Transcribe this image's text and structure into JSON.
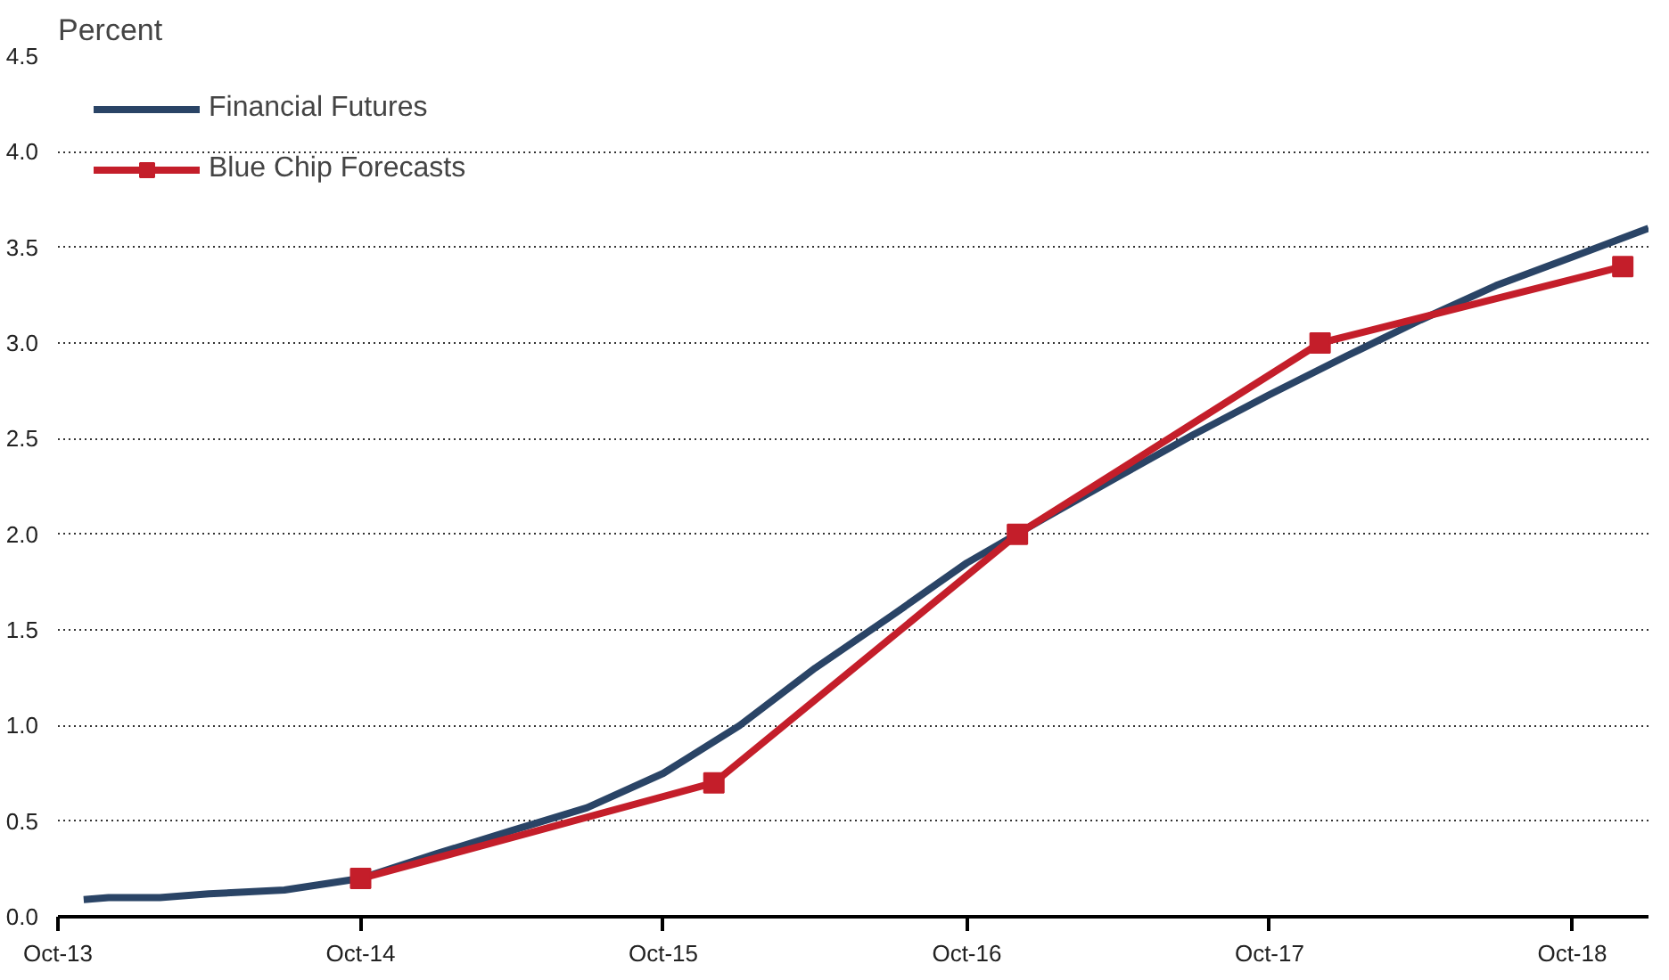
{
  "chart_data": {
    "type": "line",
    "ylabel": "Percent",
    "x": [
      "2013-11",
      "2013-12",
      "2014-02",
      "2014-04",
      "2014-07",
      "2014-10",
      "2015-01",
      "2015-04",
      "2015-07",
      "2015-10",
      "2016-01",
      "2016-04",
      "2016-07",
      "2016-10",
      "2017-01",
      "2017-04",
      "2017-07",
      "2017-10",
      "2018-01",
      "2018-04",
      "2018-07",
      "2018-10",
      "2019-01"
    ],
    "series": [
      {
        "name": "Financial Futures",
        "color": "#2a4466",
        "marker": "none",
        "values": [
          0.09,
          0.1,
          0.1,
          0.12,
          0.14,
          0.2,
          0.33,
          0.45,
          0.57,
          0.75,
          1.0,
          1.3,
          1.57,
          1.85,
          2.08,
          2.3,
          2.52,
          2.73,
          2.93,
          3.12,
          3.3,
          3.45,
          3.6
        ]
      },
      {
        "name": "Blue Chip Forecasts",
        "color": "#c41e2a",
        "marker": "square",
        "x": [
          "2014-10",
          "2015-12",
          "2016-12",
          "2017-12",
          "2018-12"
        ],
        "values": [
          0.2,
          0.7,
          2.0,
          3.0,
          3.4
        ]
      }
    ],
    "xlim": [
      "2013-10",
      "2019-01"
    ],
    "xticks": [
      {
        "value": "2013-10",
        "label": "Oct-13"
      },
      {
        "value": "2014-10",
        "label": "Oct-14"
      },
      {
        "value": "2015-10",
        "label": "Oct-15"
      },
      {
        "value": "2016-10",
        "label": "Oct-16"
      },
      {
        "value": "2017-10",
        "label": "Oct-17"
      },
      {
        "value": "2018-10",
        "label": "Oct-18"
      }
    ],
    "ylim": [
      0,
      4.5
    ],
    "yticks": [
      {
        "value": 0,
        "label": "0.0"
      },
      {
        "value": 0.5,
        "label": "0.5"
      },
      {
        "value": 1,
        "label": "1.0"
      },
      {
        "value": 1.5,
        "label": "1.5"
      },
      {
        "value": 2,
        "label": "2.0"
      },
      {
        "value": 2.5,
        "label": "2.5"
      },
      {
        "value": 3,
        "label": "3.0"
      },
      {
        "value": 3.5,
        "label": "3.5"
      },
      {
        "value": 4,
        "label": "4.0"
      },
      {
        "value": 4.5,
        "label": "4.5"
      }
    ],
    "grid": "y",
    "legend": "top left",
    "line_style": "solid"
  }
}
